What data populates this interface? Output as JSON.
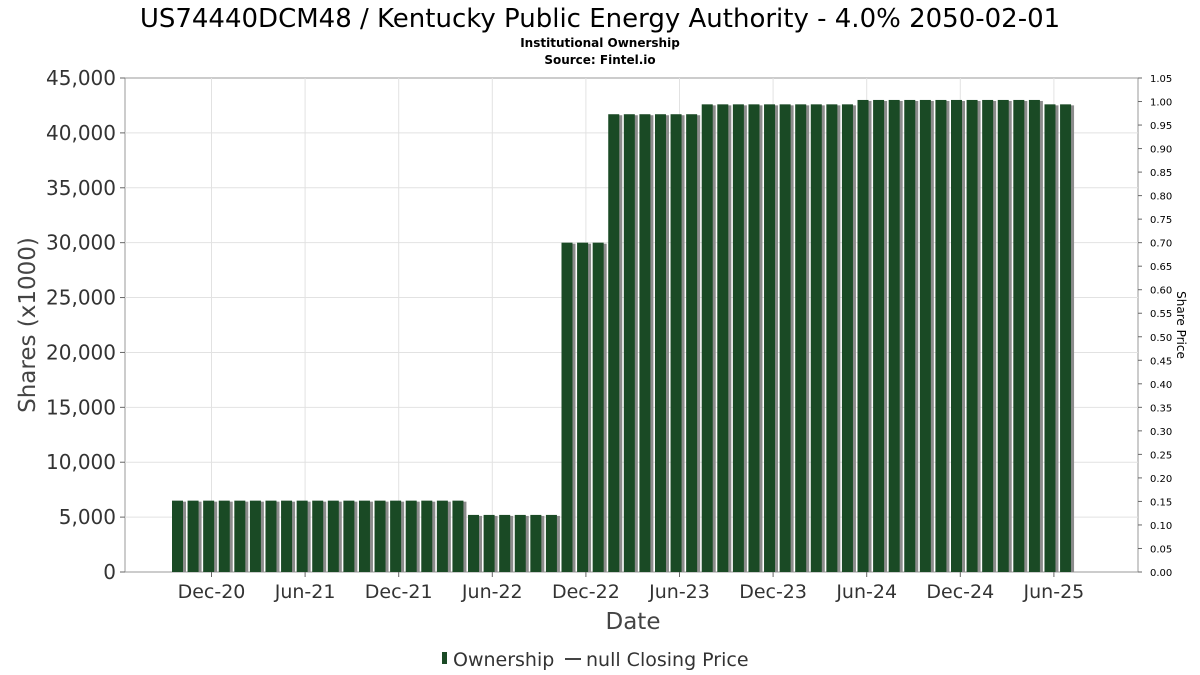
{
  "chart_data": {
    "type": "bar",
    "title": "US74440DCM48 / Kentucky Public Energy Authority - 4.0% 2050-02-01",
    "subtitle_line1": "Institutional Ownership",
    "subtitle_line2": "Source: Fintel.io",
    "xlabel": "Date",
    "ylabel": "Shares (x1000)",
    "ylabel_right": "Share Price",
    "ylim": [
      0,
      45000
    ],
    "ylim_right": [
      0,
      1.05
    ],
    "y_ticks": [
      "0",
      "5,000",
      "10,000",
      "15,000",
      "20,000",
      "25,000",
      "30,000",
      "35,000",
      "40,000",
      "45,000"
    ],
    "y_right_ticks": [
      "0.00",
      "0.05",
      "0.10",
      "0.15",
      "0.20",
      "0.25",
      "0.30",
      "0.35",
      "0.40",
      "0.45",
      "0.50",
      "0.55",
      "0.60",
      "0.65",
      "0.70",
      "0.75",
      "0.80",
      "0.85",
      "0.90",
      "0.95",
      "1.00",
      "1.05"
    ],
    "x_ticks": [
      "Dec-20",
      "Jun-21",
      "Dec-21",
      "Jun-22",
      "Dec-22",
      "Jun-23",
      "Dec-23",
      "Jun-24",
      "Dec-24",
      "Jun-25"
    ],
    "grid": true,
    "legend_position": "bottom",
    "series": [
      {
        "name": "Ownership",
        "color": "#1a4a25",
        "values": [
          6500,
          6500,
          6500,
          6500,
          6500,
          6500,
          6500,
          6500,
          6500,
          6500,
          6500,
          6500,
          6500,
          6500,
          6500,
          6500,
          6500,
          6500,
          6500,
          5200,
          5200,
          5200,
          5200,
          5200,
          5200,
          30000,
          30000,
          30000,
          41700,
          41700,
          41700,
          41700,
          41700,
          41700,
          42600,
          42600,
          42600,
          42600,
          42600,
          42600,
          42600,
          42600,
          42600,
          42600,
          43000,
          43000,
          43000,
          43000,
          43000,
          43000,
          43000,
          43000,
          43000,
          43000,
          43000,
          43000,
          42600,
          42600
        ]
      },
      {
        "name": "null Closing Price",
        "color": "#444444",
        "values": []
      }
    ]
  }
}
